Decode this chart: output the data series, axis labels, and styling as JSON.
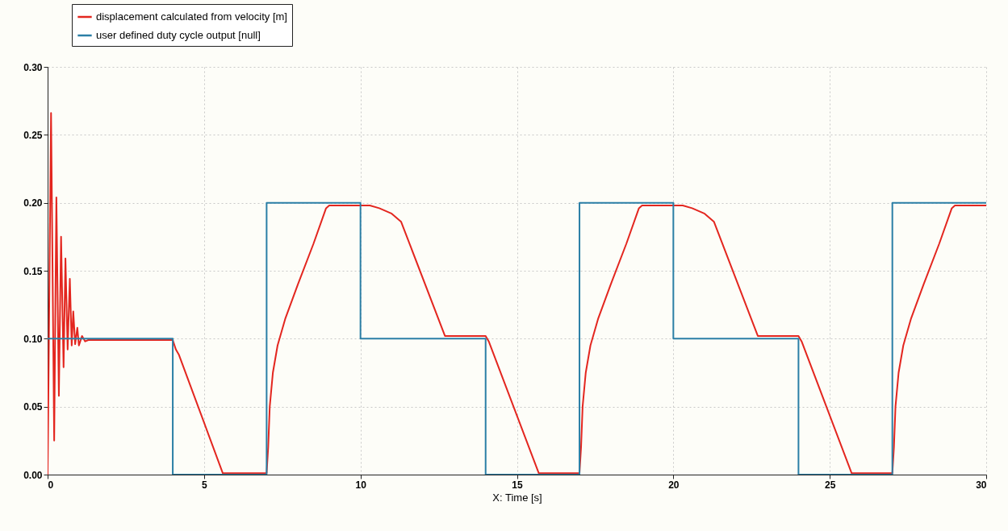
{
  "chart_data": {
    "type": "line",
    "xlabel": "X: Time [s]",
    "xlim": [
      0,
      30
    ],
    "xticks": [
      0,
      5,
      10,
      15,
      20,
      25,
      30
    ],
    "ylim": [
      0,
      0.3
    ],
    "yticks": [
      {
        "value": 0,
        "label": "0.00"
      },
      0.05,
      {
        "value": 0.1,
        "label": "0.10"
      },
      0.15,
      {
        "value": 0.2,
        "label": "0.20"
      },
      0.25,
      {
        "value": 0.3,
        "label": "0.30"
      }
    ],
    "grid": true,
    "legend": "top left",
    "series": [
      {
        "name": "displacement calculated from velocity [m]",
        "color": "#e3261f",
        "x": [
          0,
          0.11,
          0.21,
          0.28,
          0.36,
          0.43,
          0.51,
          0.57,
          0.64,
          0.71,
          0.77,
          0.82,
          0.88,
          0.95,
          1.0,
          1.1,
          1.2,
          1.3,
          4.0,
          4.1,
          4.2,
          5.6,
          7.0,
          7.05,
          7.1,
          7.2,
          7.35,
          7.6,
          8.0,
          8.5,
          8.9,
          9.0,
          10.3,
          10.6,
          11.0,
          11.3,
          12.7,
          14.0,
          14.1,
          15.7,
          17.0,
          17.05,
          17.1,
          17.2,
          17.35,
          17.6,
          18.0,
          18.5,
          18.9,
          19.0,
          20.3,
          20.6,
          21.0,
          21.3,
          22.7,
          24.0,
          24.1,
          25.7,
          27.0,
          27.05,
          27.1,
          27.2,
          27.35,
          27.6,
          28.0,
          28.5,
          28.9,
          29.0,
          30.0
        ],
        "values": [
          0,
          0.266,
          0.025,
          0.204,
          0.058,
          0.175,
          0.079,
          0.159,
          0.092,
          0.144,
          0.095,
          0.12,
          0.096,
          0.108,
          0.095,
          0.102,
          0.098,
          0.099,
          0.099,
          0.092,
          0.088,
          0.001,
          0.001,
          0.02,
          0.05,
          0.075,
          0.095,
          0.115,
          0.14,
          0.17,
          0.196,
          0.198,
          0.198,
          0.196,
          0.192,
          0.186,
          0.102,
          0.102,
          0.098,
          0.001,
          0.001,
          0.02,
          0.05,
          0.075,
          0.095,
          0.115,
          0.14,
          0.17,
          0.196,
          0.198,
          0.198,
          0.196,
          0.192,
          0.186,
          0.102,
          0.102,
          0.098,
          0.001,
          0.001,
          0.02,
          0.05,
          0.075,
          0.095,
          0.115,
          0.14,
          0.17,
          0.196,
          0.198,
          0.198
        ]
      },
      {
        "name": "user defined duty cycle output [null]",
        "type": "step",
        "color": "#2b7fa6",
        "x": [
          0,
          4,
          7,
          10,
          14,
          17,
          20,
          24,
          27,
          30
        ],
        "values": [
          0.1,
          0,
          0.2,
          0.1,
          0,
          0.2,
          0.1,
          0,
          0.2,
          0.2
        ]
      }
    ]
  }
}
